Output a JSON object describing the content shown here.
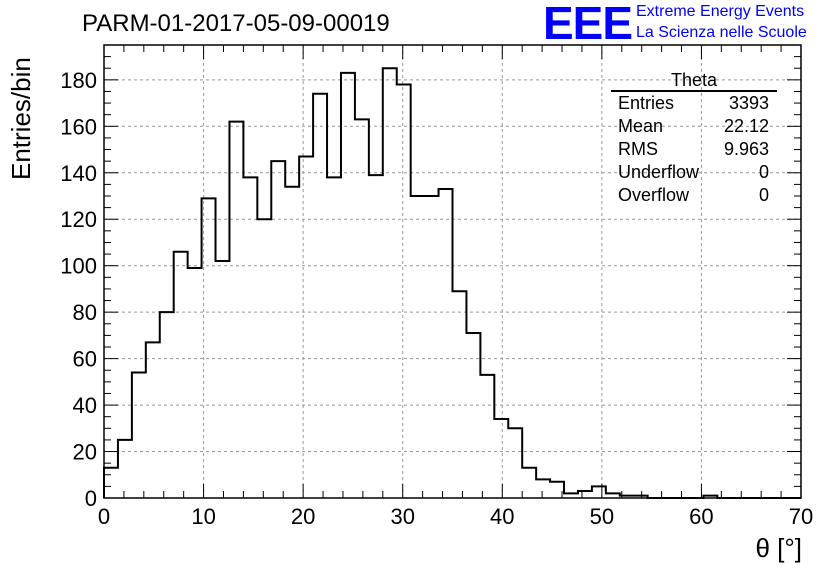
{
  "chart_data": {
    "type": "histogram",
    "title": "PARM-01-2017-05-09-00019",
    "xlabel": "θ [°]",
    "ylabel": "Entries/bin",
    "xlim": [
      0,
      70
    ],
    "ylim": [
      0,
      195
    ],
    "x_ticks": [
      "0",
      "10",
      "20",
      "30",
      "40",
      "50",
      "60",
      "70"
    ],
    "y_ticks": [
      "0",
      "20",
      "40",
      "60",
      "80",
      "100",
      "120",
      "140",
      "160",
      "180"
    ],
    "grid": true,
    "bin_width": 1.4,
    "bin_start": 0,
    "values": [
      13,
      25,
      54,
      67,
      80,
      106,
      99,
      129,
      102,
      162,
      138,
      120,
      145,
      134,
      147,
      174,
      138,
      183,
      163,
      139,
      185,
      178,
      130,
      130,
      133,
      89,
      71,
      53,
      34,
      30,
      13,
      8,
      7,
      2,
      3,
      5,
      2,
      1,
      1,
      0,
      0,
      0,
      0,
      1,
      0,
      0,
      0,
      0,
      0,
      0
    ],
    "stats_box": {
      "title": "Theta",
      "entries": [
        {
          "key": "Entries",
          "value": "3393"
        },
        {
          "key": "Mean",
          "value": "22.12"
        },
        {
          "key": "RMS",
          "value": "9.963"
        },
        {
          "key": "Underflow",
          "value": "0"
        },
        {
          "key": "Overflow",
          "value": "0"
        }
      ]
    }
  },
  "logo": {
    "mark": "EEE",
    "line1": "Extreme Energy Events",
    "line2": "La Scienza nelle Scuole"
  },
  "colors": {
    "line": "#000000",
    "grid": "#999999",
    "logo": "#0000ff"
  }
}
